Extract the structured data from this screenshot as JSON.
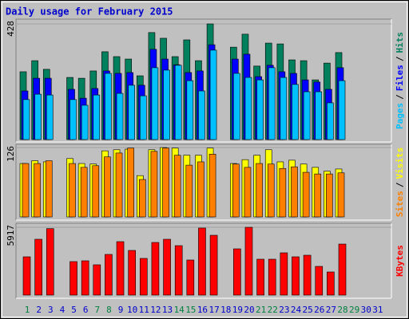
{
  "chart_data": {
    "type": "bar",
    "title": "Daily usage for February 2015",
    "categories": [
      "1",
      "2",
      "3",
      "4",
      "5",
      "6",
      "7",
      "8",
      "9",
      "10",
      "11",
      "12",
      "13",
      "14",
      "15",
      "16",
      "17",
      "18",
      "19",
      "20",
      "21",
      "22",
      "23",
      "24",
      "25",
      "26",
      "27",
      "28",
      "29",
      "30",
      "31"
    ],
    "category_colors": [
      "#008040",
      "#0000cc",
      "#0000cc",
      "#0000cc",
      "#0000cc",
      "#0000cc",
      "#008040",
      "#008040",
      "#0000cc",
      "#0000cc",
      "#0000cc",
      "#0000cc",
      "#0000cc",
      "#008040",
      "#008040",
      "#0000cc",
      "#0000cc",
      "#0000cc",
      "#0000cc",
      "#0000cc",
      "#008040",
      "#008040",
      "#0000cc",
      "#0000cc",
      "#0000cc",
      "#0000cc",
      "#0000cc",
      "#008040",
      "#008040",
      "#0000cc",
      "#0000cc"
    ],
    "legend_separator": "/",
    "panels": [
      {
        "ylim": [
          0,
          428
        ],
        "yticks": [
          428
        ],
        "series": [
          {
            "name": "Hits",
            "color": "#00805c",
            "values": [
              251,
              292,
              260,
              null,
              230,
              227,
              254,
              325,
              307,
              298,
              236,
              396,
              375,
              307,
              369,
              292,
              428,
              null,
              342,
              390,
              272,
              357,
              354,
              295,
              292,
              221,
              283,
              322,
              null,
              null,
              null
            ]
          },
          {
            "name": "Files",
            "color": "#0000ff",
            "values": [
              180,
              227,
              227,
              null,
              186,
              153,
              189,
              254,
              245,
              248,
              201,
              334,
              298,
              277,
              248,
              254,
              351,
              null,
              298,
              316,
              233,
              275,
              251,
              245,
              221,
              213,
              186,
              266,
              null,
              null,
              null
            ]
          },
          {
            "name": "Pages",
            "color": "#00c0ff",
            "values": [
              148,
              168,
              165,
              null,
              148,
              127,
              165,
              245,
              171,
              201,
              162,
              266,
              257,
              275,
              218,
              180,
              331,
              null,
              245,
              230,
              221,
              266,
              230,
              204,
              177,
              177,
              136,
              218,
              null,
              null,
              null
            ]
          }
        ]
      },
      {
        "ylim": [
          0,
          126
        ],
        "yticks": [
          126
        ],
        "series": [
          {
            "name": "Visits",
            "color": "#ffff00",
            "values": [
              97,
              102,
              100,
              null,
              106,
              97,
              96,
              120,
              122,
              123,
              75,
              122,
              126,
              125,
              112,
              112,
              125,
              null,
              97,
              104,
              112,
              122,
              100,
              103,
              96,
              90,
              83,
              87,
              null,
              null,
              null
            ]
          },
          {
            "name": "Sites",
            "color": "#ff8000",
            "values": [
              97,
              97,
              102,
              null,
              97,
              90,
              93,
              109,
              116,
              125,
              68,
              119,
              125,
              112,
              94,
              100,
              114,
              null,
              96,
              90,
              97,
              96,
              88,
              91,
              81,
              78,
              78,
              80,
              null,
              null,
              null
            ]
          }
        ]
      },
      {
        "ylim": [
          0,
          5917
        ],
        "yticks": [
          5917
        ],
        "series": [
          {
            "name": "KBytes",
            "color": "#ff0000",
            "values": [
              3341,
              4872,
              5800,
              null,
              2924,
              2993,
              2645,
              3550,
              4663,
              3898,
              3202,
              4594,
              4872,
              4315,
              3062,
              5850,
              5220,
              null,
              4037,
              5917,
              3132,
              3132,
              3689,
              3341,
              3480,
              2506,
              2018,
              4454,
              null,
              null,
              null
            ]
          }
        ]
      }
    ]
  }
}
